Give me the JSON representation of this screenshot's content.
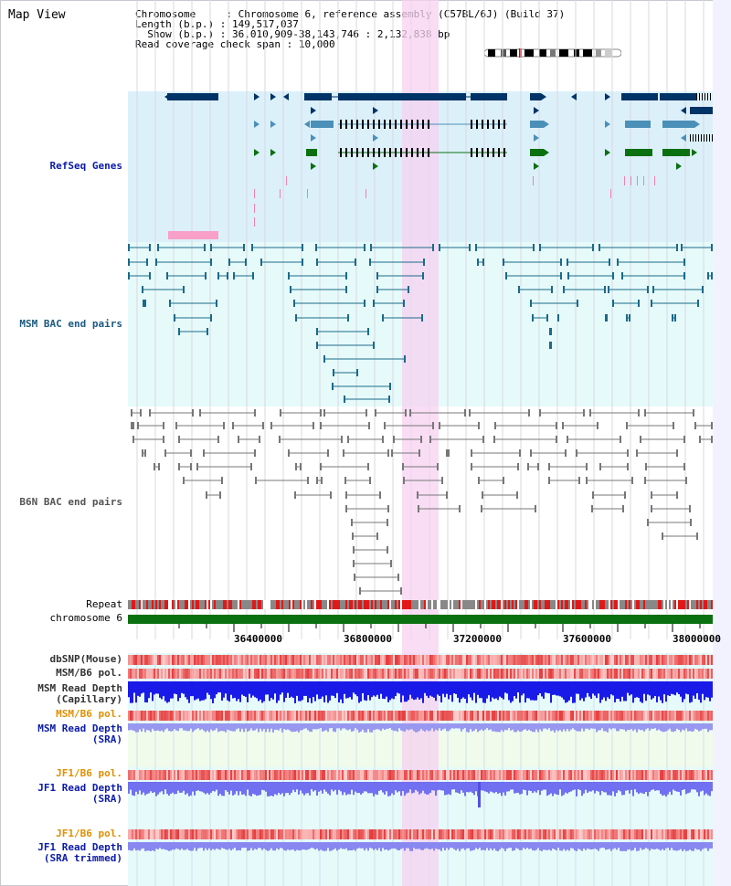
{
  "title": "Map View",
  "info": {
    "chromosome_label": "Chromosome",
    "chromosome_value": "Chromosome 6, reference assembly (C57BL/6J) (Build 37)",
    "length_label": "Length (b.p.)",
    "length_value": "149,517,037",
    "show_label": "Show (b.p.)",
    "show_value": "36,010,909-38,143,746 : 2,132,838 bp",
    "coverage_label": "Read coverage check span",
    "coverage_value": "10,000"
  },
  "tracks": {
    "refseq": "RefSeq Genes",
    "msm_bac": "MSM BAC end pairs",
    "b6n_bac": "B6N BAC end pairs",
    "repeat": "Repeat",
    "chromosome": "chromosome 6",
    "dbsnp": "dbSNP(Mouse)",
    "msm_b6_pol_1": "MSM/B6 pol.",
    "msm_read_depth_cap_1": "MSM Read Depth",
    "msm_read_depth_cap_2": "(Capillary)",
    "msm_b6_pol_2": "MSM/B6 pol.",
    "msm_read_depth_sra_1": "MSM Read Depth",
    "msm_read_depth_sra_2": "(SRA)",
    "jf1_b6_pol_1": "JF1/B6 pol.",
    "jf1_read_depth_sra_1": "JF1 Read Depth",
    "jf1_read_depth_sra_2": "(SRA)",
    "jf1_b6_pol_2": "JF1/B6 pol.",
    "jf1_read_depth_trim_1": "JF1 Read Depth",
    "jf1_read_depth_trim_2": "(SRA trimmed)"
  },
  "axis_ticks": [
    "36400000",
    "36800000",
    "37200000",
    "37600000",
    "38000000"
  ],
  "colors": {
    "refseq_bg": "#dcf0fa",
    "msm_bg": "#e6fafa",
    "highlight": "#f5d2f0",
    "gene_dark": "#003366",
    "gene_light": "#4a90b8",
    "gene_green": "#0a7010",
    "chromosome_bar": "#0a7010",
    "label_blue": "#0a1aa8",
    "label_orange": "#e09000",
    "label_teal": "#1a5a80"
  }
}
